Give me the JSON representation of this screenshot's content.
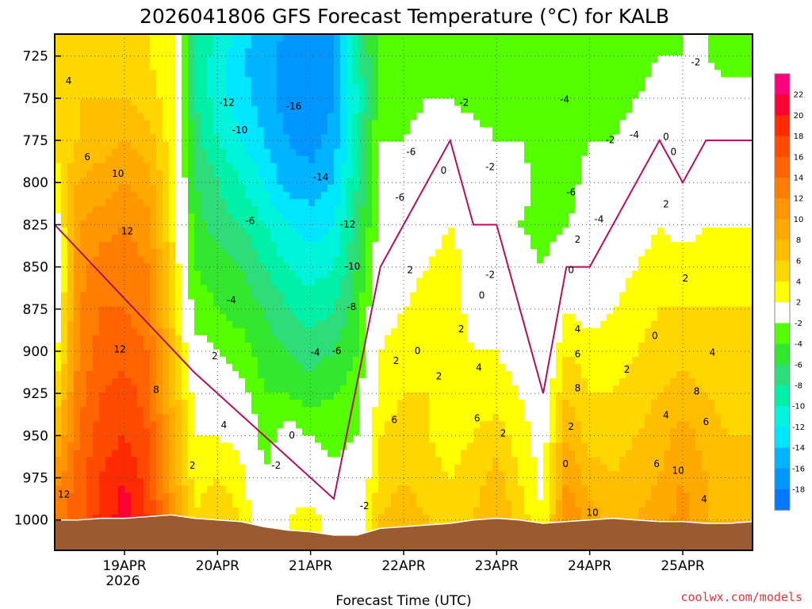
{
  "chart_data": {
    "type": "heatmap",
    "title": "2026041806 GFS Forecast Temperature (°C) for KALB",
    "xlabel": "Forecast Time (UTC)",
    "ylabel": "",
    "credit": "coolwx.com/models",
    "y_axis": {
      "unit": "hPa",
      "range": [
        712,
        1018
      ],
      "ticks": [
        725,
        750,
        775,
        800,
        825,
        850,
        875,
        900,
        925,
        950,
        975,
        1000
      ],
      "labels": [
        "725",
        "750",
        "775",
        "800",
        "825",
        "850",
        "875",
        "900",
        "925",
        "950",
        "975",
        "1000"
      ]
    },
    "x_axis": {
      "unit": "day (April 2026)",
      "range": [
        18.25,
        25.75
      ],
      "ticks": [
        19,
        20,
        21,
        22,
        23,
        24,
        25
      ],
      "labels": [
        "19APR",
        "20APR",
        "21APR",
        "22APR",
        "23APR",
        "24APR",
        "25APR"
      ],
      "year_label": "2026"
    },
    "colorbar": {
      "labels": [
        "22",
        "20",
        "18",
        "16",
        "14",
        "12",
        "10",
        "8",
        "6",
        "4",
        "2",
        "-2",
        "-4",
        "-6",
        "-8",
        "-10",
        "-12",
        "-14",
        "-16",
        "-18"
      ],
      "bins": [
        {
          "lo": 22,
          "hi": 24,
          "color": "#ff007f"
        },
        {
          "lo": 20,
          "hi": 22,
          "color": "#ff0033"
        },
        {
          "lo": 18,
          "hi": 20,
          "color": "#ff2a00"
        },
        {
          "lo": 16,
          "hi": 18,
          "color": "#ff4b00"
        },
        {
          "lo": 14,
          "hi": 16,
          "color": "#ff6400"
        },
        {
          "lo": 12,
          "hi": 14,
          "color": "#ff7d00"
        },
        {
          "lo": 10,
          "hi": 12,
          "color": "#ff9600"
        },
        {
          "lo": 8,
          "hi": 10,
          "color": "#ffaa00"
        },
        {
          "lo": 6,
          "hi": 8,
          "color": "#ffbe00"
        },
        {
          "lo": 4,
          "hi": 6,
          "color": "#ffd700"
        },
        {
          "lo": 2,
          "hi": 4,
          "color": "#ffff00"
        },
        {
          "lo": -2,
          "hi": 2,
          "color": "#ffffff"
        },
        {
          "lo": -4,
          "hi": -2,
          "color": "#55ff00"
        },
        {
          "lo": -6,
          "hi": -4,
          "color": "#33e62e"
        },
        {
          "lo": -8,
          "hi": -6,
          "color": "#2edc7a"
        },
        {
          "lo": -10,
          "hi": -8,
          "color": "#00f0a8"
        },
        {
          "lo": -12,
          "hi": -10,
          "color": "#00f4dc"
        },
        {
          "lo": -14,
          "hi": -12,
          "color": "#00e6ff"
        },
        {
          "lo": -16,
          "hi": -14,
          "color": "#00b4ff"
        },
        {
          "lo": -18,
          "hi": -16,
          "color": "#0096ff"
        },
        {
          "lo": -20,
          "hi": -18,
          "color": "#0078ff"
        }
      ]
    },
    "times": [
      18.25,
      18.5,
      18.75,
      19.0,
      19.25,
      19.5,
      19.75,
      20.0,
      20.25,
      20.5,
      20.75,
      21.0,
      21.25,
      21.5,
      21.75,
      22.0,
      22.25,
      22.5,
      22.75,
      23.0,
      23.25,
      23.5,
      23.75,
      24.0,
      24.25,
      24.5,
      24.75,
      25.0,
      25.25,
      25.5,
      25.75
    ],
    "levels": [
      712,
      725,
      750,
      775,
      800,
      825,
      850,
      875,
      900,
      925,
      950,
      975,
      1000,
      1018
    ],
    "temperature_grid": [
      [
        4,
        4,
        4,
        4,
        3,
        0,
        -2,
        -1,
        1,
        4,
        7,
        11,
        13,
        13
      ],
      [
        5,
        5,
        6,
        6,
        8,
        10,
        11,
        12,
        12,
        13,
        14,
        15,
        15,
        15
      ],
      [
        4,
        5,
        6,
        7,
        9,
        11,
        13,
        14,
        15,
        16,
        17,
        18,
        19,
        19
      ],
      [
        5,
        5,
        6,
        8,
        10,
        12,
        13,
        14,
        15,
        17,
        18,
        20,
        21,
        21
      ],
      [
        4,
        4,
        5,
        7,
        9,
        11,
        12,
        13,
        14,
        15,
        16,
        17,
        18,
        18
      ],
      [
        3,
        3,
        3,
        3,
        4,
        4,
        5,
        6,
        7,
        8,
        9,
        10,
        11,
        11
      ],
      [
        -8,
        -8,
        -8,
        -7,
        -6,
        -5,
        -4,
        -3,
        -1,
        1,
        2,
        3,
        4,
        4
      ],
      [
        -10,
        -11,
        -11,
        -10,
        -8,
        -7,
        -5,
        -4,
        -2,
        0,
        2,
        4,
        6,
        6
      ],
      [
        -13,
        -14,
        -13,
        -12,
        -10,
        -8,
        -6,
        -5,
        -3,
        -1,
        1,
        3,
        4,
        4
      ],
      [
        -15,
        -15,
        -15,
        -14,
        -12,
        -10,
        -8,
        -6,
        -5,
        -4,
        -3,
        -2,
        -1,
        -1
      ],
      [
        -16,
        -17,
        -17,
        -16,
        -15,
        -12,
        -10,
        -8,
        -6,
        -4,
        -1,
        1,
        2,
        2
      ],
      [
        -17,
        -18,
        -18,
        -17,
        -15,
        -13,
        -11,
        -9,
        -7,
        -5,
        -2,
        0,
        3,
        3
      ],
      [
        -16,
        -17,
        -16,
        -15,
        -14,
        -12,
        -10,
        -8,
        -6,
        -4,
        -3,
        -1,
        1,
        1
      ],
      [
        -9,
        -9,
        -10,
        -9,
        -8,
        -7,
        -6,
        -5,
        -4,
        -3,
        -2,
        -1,
        0,
        0
      ],
      [
        -3,
        -3,
        -3,
        -2,
        -2,
        -1,
        0,
        1,
        2,
        3,
        4,
        5,
        6,
        6
      ],
      [
        -3,
        -3,
        -3,
        -2,
        -1,
        0,
        1,
        2,
        3,
        4,
        5,
        6,
        7,
        7
      ],
      [
        -3,
        -3,
        -2,
        -1,
        0,
        1,
        2,
        3,
        3,
        4,
        4,
        5,
        6,
        6
      ],
      [
        -3,
        -3,
        -2,
        0,
        1,
        2,
        3,
        3,
        4,
        3,
        3,
        4,
        5,
        5
      ],
      [
        -3,
        -3,
        -3,
        -1,
        0,
        0,
        1,
        1,
        2,
        3,
        4,
        5,
        6,
        6
      ],
      [
        -3,
        -3,
        -3,
        -2,
        -1,
        0,
        1,
        1,
        2,
        3,
        5,
        7,
        8,
        8
      ],
      [
        -3,
        -3,
        -3,
        -2,
        -1,
        -2,
        -1,
        0,
        1,
        2,
        3,
        4,
        5,
        5
      ],
      [
        -4,
        -4,
        -4,
        -3,
        -3,
        -3,
        -2,
        -2,
        -1,
        0,
        1,
        1,
        2,
        2
      ],
      [
        -3,
        -3,
        -4,
        -4,
        -3,
        -2,
        0,
        2,
        4,
        6,
        8,
        10,
        12,
        12
      ],
      [
        -3,
        -3,
        -3,
        -2,
        -1,
        -1,
        0,
        1,
        3,
        4,
        5,
        7,
        9,
        9
      ],
      [
        -3,
        -3,
        -3,
        -2,
        -1,
        0,
        1,
        2,
        3,
        4,
        5,
        6,
        7,
        7
      ],
      [
        -3,
        -3,
        -2,
        -1,
        0,
        1,
        2,
        3,
        4,
        5,
        6,
        7,
        8,
        8
      ],
      [
        -3,
        -2,
        -1,
        0,
        1,
        2,
        3,
        4,
        5,
        6,
        7,
        8,
        9,
        9
      ],
      [
        -2,
        -2,
        -1,
        0,
        0,
        1,
        3,
        4,
        5,
        7,
        9,
        10,
        11,
        11
      ],
      [
        -2,
        -2,
        -1,
        0,
        1,
        2,
        3,
        4,
        5,
        6,
        7,
        8,
        8,
        8
      ],
      [
        -3,
        -3,
        -1,
        0,
        1,
        2,
        3,
        4,
        4,
        5,
        6,
        7,
        8,
        8
      ],
      [
        -3,
        -3,
        -1,
        0,
        1,
        2,
        3,
        4,
        5,
        5,
        6,
        7,
        8,
        8
      ]
    ],
    "surface_pressure": [
      1000,
      1000,
      999,
      999,
      998,
      997,
      999,
      1000,
      1001,
      1004,
      1006,
      1007,
      1009,
      1009,
      1005,
      1004,
      1003,
      1002,
      1000,
      999,
      1000,
      1002,
      1001,
      1000,
      999,
      1000,
      1001,
      1001,
      1002,
      1002,
      1001
    ],
    "contour_labels": [
      {
        "x": 18.4,
        "p": 740,
        "text": "4"
      },
      {
        "x": 18.6,
        "p": 785,
        "text": "6"
      },
      {
        "x": 18.93,
        "p": 795,
        "text": "10"
      },
      {
        "x": 19.03,
        "p": 829,
        "text": "12"
      },
      {
        "x": 18.95,
        "p": 899,
        "text": "12"
      },
      {
        "x": 18.35,
        "p": 985,
        "text": "12"
      },
      {
        "x": 19.34,
        "p": 923,
        "text": "8"
      },
      {
        "x": 19.73,
        "p": 968,
        "text": "2"
      },
      {
        "x": 20.07,
        "p": 944,
        "text": "4"
      },
      {
        "x": 19.97,
        "p": 903,
        "text": "2"
      },
      {
        "x": 20.1,
        "p": 753,
        "text": "-12"
      },
      {
        "x": 20.24,
        "p": 769,
        "text": "-10"
      },
      {
        "x": 20.35,
        "p": 823,
        "text": "-6"
      },
      {
        "x": 20.15,
        "p": 870,
        "text": "-4"
      },
      {
        "x": 20.82,
        "p": 755,
        "text": "-16"
      },
      {
        "x": 21.11,
        "p": 797,
        "text": "-14"
      },
      {
        "x": 21.4,
        "p": 825,
        "text": "-12"
      },
      {
        "x": 21.45,
        "p": 850,
        "text": "-10"
      },
      {
        "x": 21.44,
        "p": 874,
        "text": "-8"
      },
      {
        "x": 21.28,
        "p": 900,
        "text": "-6"
      },
      {
        "x": 21.05,
        "p": 901,
        "text": "-4"
      },
      {
        "x": 20.8,
        "p": 950,
        "text": "0"
      },
      {
        "x": 20.63,
        "p": 968,
        "text": "-2"
      },
      {
        "x": 21.58,
        "p": 992,
        "text": "-2"
      },
      {
        "x": 22.08,
        "p": 782,
        "text": "-6"
      },
      {
        "x": 21.96,
        "p": 809,
        "text": "-6"
      },
      {
        "x": 22.07,
        "p": 852,
        "text": "2"
      },
      {
        "x": 22.15,
        "p": 900,
        "text": "0"
      },
      {
        "x": 21.92,
        "p": 906,
        "text": "2"
      },
      {
        "x": 22.38,
        "p": 915,
        "text": "2"
      },
      {
        "x": 22.62,
        "p": 887,
        "text": "2"
      },
      {
        "x": 22.79,
        "p": 940,
        "text": "6"
      },
      {
        "x": 21.9,
        "p": 941,
        "text": "6"
      },
      {
        "x": 23.07,
        "p": 949,
        "text": "2"
      },
      {
        "x": 22.84,
        "p": 867,
        "text": "0"
      },
      {
        "x": 22.93,
        "p": 855,
        "text": "-2"
      },
      {
        "x": 22.81,
        "p": 910,
        "text": "4"
      },
      {
        "x": 22.65,
        "p": 753,
        "text": "-2"
      },
      {
        "x": 22.93,
        "p": 791,
        "text": "-2"
      },
      {
        "x": 22.43,
        "p": 793,
        "text": "0"
      },
      {
        "x": 23.73,
        "p": 751,
        "text": "-4"
      },
      {
        "x": 23.8,
        "p": 806,
        "text": "-6"
      },
      {
        "x": 24.1,
        "p": 822,
        "text": "-4"
      },
      {
        "x": 23.87,
        "p": 834,
        "text": "2"
      },
      {
        "x": 23.8,
        "p": 852,
        "text": "0"
      },
      {
        "x": 24.22,
        "p": 775,
        "text": "-2"
      },
      {
        "x": 24.48,
        "p": 772,
        "text": "-4"
      },
      {
        "x": 24.82,
        "p": 813,
        "text": "2"
      },
      {
        "x": 24.9,
        "p": 782,
        "text": "0"
      },
      {
        "x": 24.82,
        "p": 773,
        "text": "0"
      },
      {
        "x": 25.14,
        "p": 729,
        "text": "-2"
      },
      {
        "x": 24.7,
        "p": 891,
        "text": "0"
      },
      {
        "x": 24.4,
        "p": 911,
        "text": "2"
      },
      {
        "x": 25.32,
        "p": 901,
        "text": "4"
      },
      {
        "x": 25.03,
        "p": 857,
        "text": "2"
      },
      {
        "x": 24.82,
        "p": 938,
        "text": "4"
      },
      {
        "x": 24.72,
        "p": 967,
        "text": "6"
      },
      {
        "x": 24.95,
        "p": 971,
        "text": "10"
      },
      {
        "x": 25.15,
        "p": 924,
        "text": "8"
      },
      {
        "x": 25.25,
        "p": 942,
        "text": "6"
      },
      {
        "x": 25.23,
        "p": 988,
        "text": "4"
      },
      {
        "x": 23.87,
        "p": 887,
        "text": "4"
      },
      {
        "x": 23.87,
        "p": 902,
        "text": "6"
      },
      {
        "x": 23.87,
        "p": 922,
        "text": "8"
      },
      {
        "x": 23.8,
        "p": 945,
        "text": "2"
      },
      {
        "x": 23.74,
        "p": 967,
        "text": "0"
      },
      {
        "x": 24.03,
        "p": 996,
        "text": "10"
      }
    ]
  }
}
